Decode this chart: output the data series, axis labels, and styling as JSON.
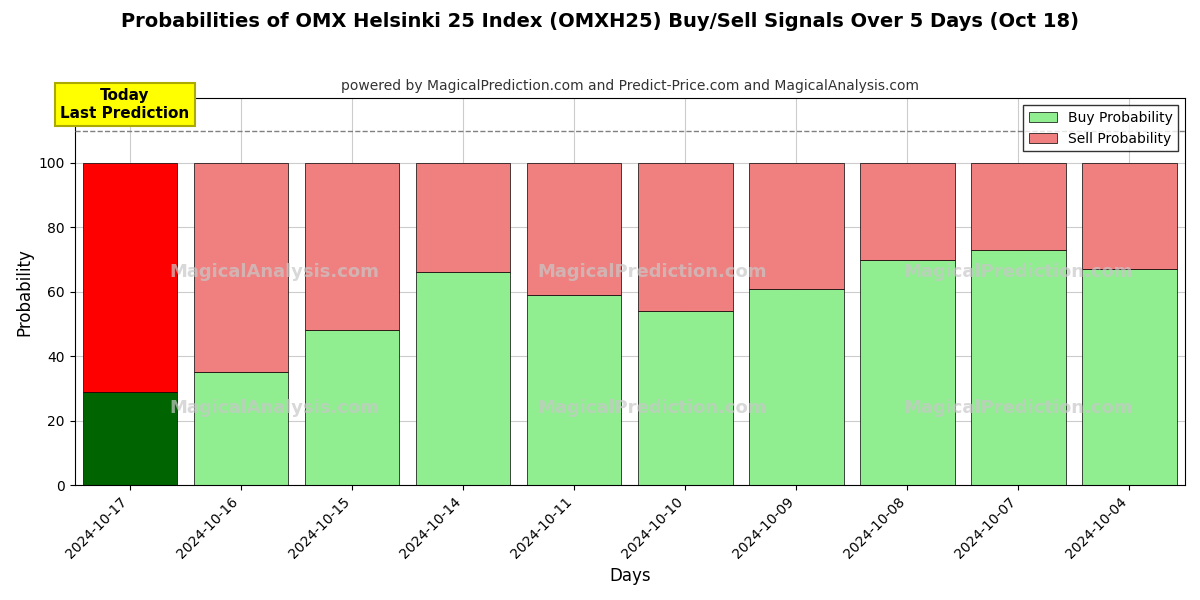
{
  "title": "Probabilities of OMX Helsinki 25 Index (OMXH25) Buy/Sell Signals Over 5 Days (Oct 18)",
  "subtitle": "powered by MagicalPrediction.com and Predict-Price.com and MagicalAnalysis.com",
  "xlabel": "Days",
  "ylabel": "Probability",
  "categories": [
    "2024-10-17",
    "2024-10-16",
    "2024-10-15",
    "2024-10-14",
    "2024-10-11",
    "2024-10-10",
    "2024-10-09",
    "2024-10-08",
    "2024-10-07",
    "2024-10-04"
  ],
  "buy_values": [
    29,
    35,
    48,
    66,
    59,
    54,
    61,
    70,
    73,
    67
  ],
  "sell_values": [
    71,
    65,
    52,
    34,
    41,
    46,
    39,
    30,
    27,
    33
  ],
  "buy_color_first": "#006400",
  "sell_color_first": "#ff0000",
  "buy_color_rest": "#90EE90",
  "sell_color_rest": "#F08080",
  "dashed_line_y": 110,
  "ylim": [
    0,
    120
  ],
  "yticks": [
    0,
    20,
    40,
    60,
    80,
    100
  ],
  "annotation_text": "Today\nLast Prediction",
  "annotation_bg": "#ffff00",
  "legend_buy_color": "#90EE90",
  "legend_sell_color": "#F08080",
  "background_color": "#ffffff",
  "grid_color": "#cccccc",
  "bar_width": 0.85
}
